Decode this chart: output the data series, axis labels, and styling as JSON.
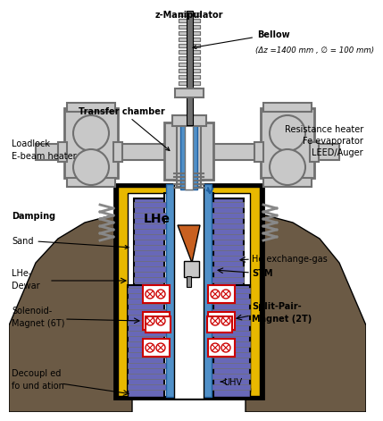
{
  "colors": {
    "gray": "#b0b0b0",
    "dark_gray": "#707070",
    "mid_gray": "#909090",
    "black": "#000000",
    "yellow": "#E8B800",
    "purple": "#6868b8",
    "blue_tube": "#5090c8",
    "white": "#ffffff",
    "light_gray": "#c8c8c8",
    "orange": "#c86020",
    "red": "#cc0000",
    "sand": "#6b5a45",
    "spring_gray": "#888888"
  },
  "labels": {
    "z_manipulator": "z-Manipulator",
    "bellow": "Bellow",
    "bellow_sub": "(Δz =1400 mm , ∅ = 100 mm)",
    "transfer_chamber": "Transfer chamber",
    "loadlock": "Loadlock\nE-beam heater",
    "resistance": "Resistance heater\nFe evaporator\nLEED/Auger",
    "damping": "Damping",
    "sand": "Sand",
    "lhe_dewar": "LHe-\nDewar",
    "solenoid": "Solenoid-\nMagnet (6T)",
    "decoupled": "Decoupl ed\nfo und ation",
    "lhe": "LHe",
    "he_exchange": "He exchange-gas",
    "stm": "STM",
    "split_pair": "Split-Pair-\nMagnet (2T)",
    "uhv": "UHV"
  }
}
